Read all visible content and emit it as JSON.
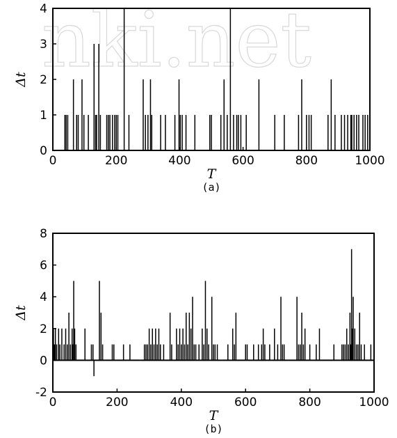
{
  "watermark": "nki.net",
  "chart_data": [
    {
      "type": "line",
      "caption": "(a)",
      "xlabel": "T",
      "ylabel": "Δt",
      "xlim": [
        0,
        1000
      ],
      "ylim": [
        0,
        4
      ],
      "xticks": [
        0,
        200,
        400,
        600,
        800,
        1000
      ],
      "yticks": [
        0,
        1,
        2,
        3,
        4
      ],
      "grid": false,
      "spikes": [
        [
          38,
          1
        ],
        [
          42,
          1
        ],
        [
          47,
          1
        ],
        [
          65,
          2
        ],
        [
          75,
          1
        ],
        [
          80,
          1
        ],
        [
          92,
          2
        ],
        [
          98,
          1
        ],
        [
          112,
          1
        ],
        [
          130,
          3
        ],
        [
          135,
          1
        ],
        [
          138,
          1
        ],
        [
          145,
          3
        ],
        [
          150,
          1
        ],
        [
          170,
          1
        ],
        [
          175,
          1
        ],
        [
          180,
          1
        ],
        [
          188,
          1
        ],
        [
          195,
          1
        ],
        [
          200,
          1
        ],
        [
          205,
          1
        ],
        [
          225,
          4
        ],
        [
          240,
          1
        ],
        [
          285,
          2
        ],
        [
          292,
          1
        ],
        [
          300,
          1
        ],
        [
          308,
          2
        ],
        [
          312,
          1
        ],
        [
          340,
          1
        ],
        [
          355,
          1
        ],
        [
          385,
          1
        ],
        [
          398,
          2
        ],
        [
          402,
          1
        ],
        [
          408,
          1
        ],
        [
          420,
          1
        ],
        [
          448,
          1
        ],
        [
          495,
          1
        ],
        [
          500,
          1
        ],
        [
          530,
          1
        ],
        [
          540,
          2
        ],
        [
          550,
          1
        ],
        [
          560,
          4
        ],
        [
          570,
          1
        ],
        [
          580,
          1
        ],
        [
          585,
          1
        ],
        [
          593,
          1
        ],
        [
          610,
          1
        ],
        [
          650,
          2
        ],
        [
          700,
          1
        ],
        [
          730,
          1
        ],
        [
          775,
          1
        ],
        [
          785,
          2
        ],
        [
          800,
          1
        ],
        [
          808,
          1
        ],
        [
          815,
          1
        ],
        [
          868,
          1
        ],
        [
          878,
          2
        ],
        [
          890,
          1
        ],
        [
          910,
          1
        ],
        [
          920,
          1
        ],
        [
          930,
          1
        ],
        [
          940,
          1
        ],
        [
          943,
          1
        ],
        [
          950,
          1
        ],
        [
          958,
          1
        ],
        [
          965,
          1
        ],
        [
          978,
          1
        ],
        [
          985,
          1
        ],
        [
          993,
          1
        ]
      ]
    },
    {
      "type": "line",
      "caption": "(b)",
      "xlabel": "T",
      "ylabel": "Δt",
      "xlim": [
        0,
        1000
      ],
      "ylim": [
        -2,
        8
      ],
      "xticks": [
        0,
        200,
        400,
        600,
        800,
        1000
      ],
      "yticks": [
        -2,
        0,
        2,
        4,
        6,
        8
      ],
      "grid": false,
      "spikes": [
        [
          2,
          2
        ],
        [
          5,
          1
        ],
        [
          8,
          2
        ],
        [
          12,
          1
        ],
        [
          18,
          2
        ],
        [
          22,
          1
        ],
        [
          28,
          2
        ],
        [
          35,
          1
        ],
        [
          40,
          2
        ],
        [
          45,
          1
        ],
        [
          50,
          3
        ],
        [
          55,
          1
        ],
        [
          60,
          2
        ],
        [
          62,
          1
        ],
        [
          65,
          5
        ],
        [
          68,
          2
        ],
        [
          72,
          1
        ],
        [
          100,
          2
        ],
        [
          120,
          1
        ],
        [
          125,
          1
        ],
        [
          128,
          -1
        ],
        [
          145,
          5
        ],
        [
          150,
          3
        ],
        [
          155,
          1
        ],
        [
          185,
          1
        ],
        [
          190,
          1
        ],
        [
          220,
          1
        ],
        [
          240,
          1
        ],
        [
          285,
          1
        ],
        [
          290,
          1
        ],
        [
          295,
          1
        ],
        [
          300,
          2
        ],
        [
          305,
          1
        ],
        [
          310,
          2
        ],
        [
          315,
          1
        ],
        [
          320,
          2
        ],
        [
          325,
          1
        ],
        [
          330,
          2
        ],
        [
          335,
          1
        ],
        [
          345,
          1
        ],
        [
          365,
          3
        ],
        [
          370,
          1
        ],
        [
          385,
          2
        ],
        [
          390,
          1
        ],
        [
          395,
          2
        ],
        [
          400,
          1
        ],
        [
          405,
          2
        ],
        [
          410,
          1
        ],
        [
          415,
          3
        ],
        [
          420,
          1
        ],
        [
          425,
          3
        ],
        [
          430,
          2
        ],
        [
          435,
          4
        ],
        [
          440,
          1
        ],
        [
          445,
          1
        ],
        [
          455,
          1
        ],
        [
          465,
          2
        ],
        [
          470,
          1
        ],
        [
          475,
          5
        ],
        [
          480,
          2
        ],
        [
          485,
          1
        ],
        [
          495,
          4
        ],
        [
          500,
          1
        ],
        [
          505,
          1
        ],
        [
          512,
          1
        ],
        [
          545,
          1
        ],
        [
          560,
          2
        ],
        [
          565,
          1
        ],
        [
          570,
          3
        ],
        [
          600,
          1
        ],
        [
          605,
          1
        ],
        [
          625,
          1
        ],
        [
          640,
          1
        ],
        [
          650,
          1
        ],
        [
          655,
          2
        ],
        [
          660,
          1
        ],
        [
          675,
          1
        ],
        [
          690,
          2
        ],
        [
          700,
          1
        ],
        [
          710,
          4
        ],
        [
          715,
          1
        ],
        [
          720,
          1
        ],
        [
          760,
          4
        ],
        [
          765,
          1
        ],
        [
          770,
          1
        ],
        [
          775,
          3
        ],
        [
          780,
          1
        ],
        [
          785,
          2
        ],
        [
          800,
          1
        ],
        [
          820,
          1
        ],
        [
          830,
          2
        ],
        [
          875,
          1
        ],
        [
          900,
          1
        ],
        [
          905,
          1
        ],
        [
          910,
          1
        ],
        [
          915,
          2
        ],
        [
          920,
          1
        ],
        [
          925,
          3
        ],
        [
          928,
          1
        ],
        [
          930,
          7
        ],
        [
          933,
          2
        ],
        [
          935,
          4
        ],
        [
          940,
          2
        ],
        [
          945,
          1
        ],
        [
          950,
          1
        ],
        [
          955,
          3
        ],
        [
          960,
          1
        ],
        [
          970,
          1
        ],
        [
          990,
          1
        ]
      ]
    }
  ]
}
